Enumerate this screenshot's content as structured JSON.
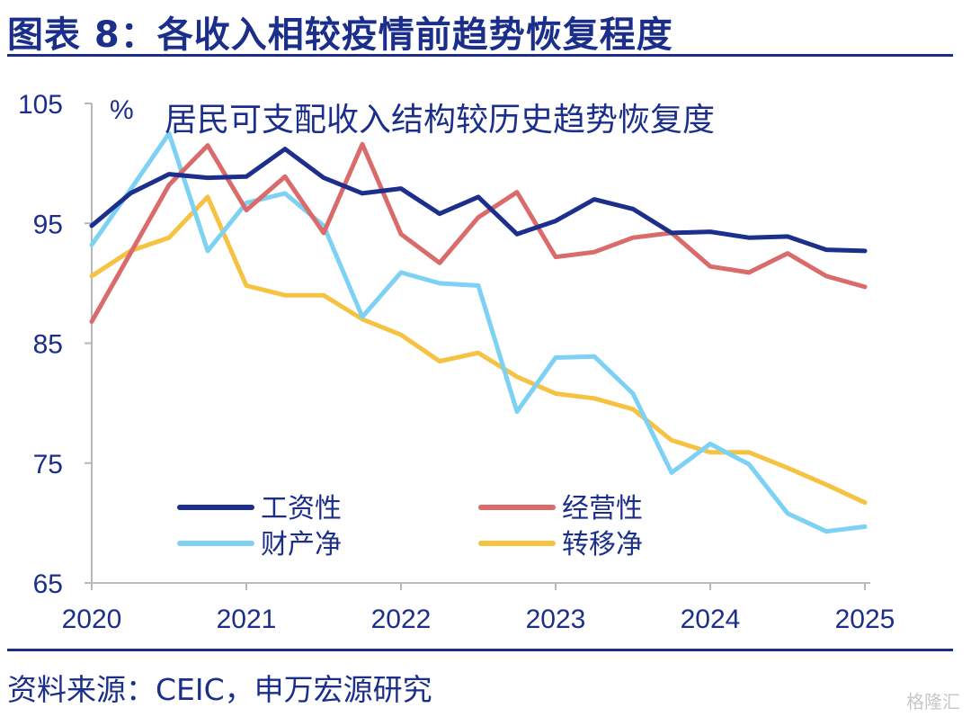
{
  "header": {
    "title": "图表 8：各收入相较疫情前趋势恢复程度"
  },
  "footer": {
    "source": "资料来源：CEIC，申万宏源研究",
    "watermark": "格隆汇"
  },
  "chart_data": {
    "type": "line",
    "title": "居民可支配收入结构较历史趋势恢复度",
    "unit_label": "%",
    "xlabel": "",
    "ylabel": "",
    "ylim": [
      65,
      105
    ],
    "yticks": [
      65,
      75,
      85,
      95,
      105
    ],
    "xlim": [
      2020,
      2025
    ],
    "xticks": [
      2020,
      2021,
      2022,
      2023,
      2024,
      2025
    ],
    "grid": false,
    "legend_position": "lower-center",
    "x": [
      2020.0,
      2020.25,
      2020.5,
      2020.75,
      2021.0,
      2021.25,
      2021.5,
      2021.75,
      2022.0,
      2022.25,
      2022.5,
      2022.75,
      2023.0,
      2023.25,
      2023.5,
      2023.75,
      2024.0,
      2024.25,
      2024.5,
      2024.75,
      2025.0
    ],
    "series": [
      {
        "name": "工资性",
        "color": "#1d2f8c",
        "values": [
          94.8,
          97.5,
          99.1,
          98.8,
          98.9,
          101.2,
          98.8,
          97.5,
          97.9,
          95.8,
          97.2,
          94.1,
          95.2,
          97.0,
          96.2,
          94.2,
          94.3,
          93.8,
          93.9,
          92.8,
          92.7
        ]
      },
      {
        "name": "经营性",
        "color": "#d96b6b",
        "values": [
          86.8,
          92.5,
          98.2,
          101.5,
          96.1,
          98.9,
          94.2,
          101.6,
          94.1,
          91.7,
          95.5,
          97.6,
          92.2,
          92.6,
          93.8,
          94.2,
          91.4,
          90.9,
          92.5,
          90.6,
          89.7
        ]
      },
      {
        "name": "财产净",
        "color": "#7dd1f5",
        "values": [
          93.2,
          97.8,
          102.5,
          92.7,
          96.7,
          97.5,
          94.8,
          87.2,
          90.9,
          90.0,
          89.8,
          79.3,
          83.8,
          83.9,
          80.8,
          74.2,
          76.6,
          74.9,
          70.8,
          69.3,
          69.7
        ]
      },
      {
        "name": "转移净",
        "color": "#f5c242",
        "values": [
          90.6,
          92.7,
          93.8,
          97.2,
          89.8,
          89.0,
          89.0,
          87.0,
          85.7,
          83.5,
          84.2,
          82.2,
          80.8,
          80.4,
          79.5,
          76.9,
          75.9,
          75.9,
          74.6,
          73.2,
          71.7
        ]
      }
    ]
  }
}
